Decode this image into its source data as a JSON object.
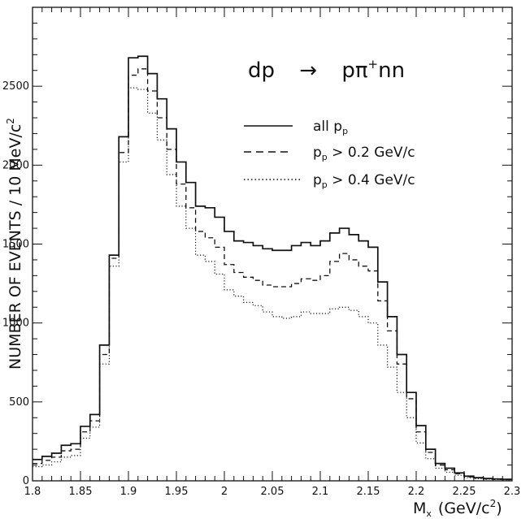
{
  "chart_data": {
    "type": "line",
    "step": true,
    "title": "dp → pπ⁺ nn",
    "title_parts": {
      "reaction": "dp",
      "arrow": "→",
      "product": "pπ",
      "superscript": "+",
      "tail": "nn"
    },
    "xlabel": "M_x (GeV/c²)",
    "xlabel_parts": {
      "M": "M",
      "sub": "x",
      "unit": "(GeV/c",
      "sup": "2",
      "close": ")"
    },
    "ylabel": "NUMBER OF EVENTS / 10 MeV/c²",
    "ylabel_parts": {
      "text": "NUMBER OF EVENTS / 10 MeV/c",
      "sup": "2"
    },
    "xlim": [
      1.8,
      2.3
    ],
    "ylim": [
      0,
      3000
    ],
    "x_ticks": [
      "1.8",
      "1.85",
      "1.9",
      "1.95",
      "2",
      "2.05",
      "2.1",
      "2.15",
      "2.2",
      "2.25",
      "2.3"
    ],
    "y_ticks": [
      "0",
      "500",
      "1000",
      "1500",
      "2000",
      "2500"
    ],
    "bin_edges_start": 1.8,
    "bin_width": 0.01,
    "legend_position": "top-right",
    "series": [
      {
        "name": "all p_p",
        "legend_parts": {
          "text": "all p",
          "sub": "p"
        },
        "style": "solid",
        "values": [
          135,
          155,
          175,
          225,
          235,
          345,
          420,
          860,
          1430,
          2180,
          2680,
          2690,
          2580,
          2420,
          2230,
          2020,
          1890,
          1740,
          1730,
          1670,
          1580,
          1520,
          1510,
          1490,
          1470,
          1460,
          1460,
          1490,
          1510,
          1490,
          1520,
          1570,
          1600,
          1560,
          1520,
          1480,
          1260,
          1040,
          800,
          560,
          350,
          200,
          110,
          80,
          50,
          30,
          20,
          15,
          12,
          10
        ]
      },
      {
        "name": "p_p > 0.2 GeV/c",
        "legend_parts": {
          "text": "p",
          "sub": "p",
          "rest": " > 0.2 GeV/c"
        },
        "style": "dashed",
        "values": [
          110,
          130,
          150,
          190,
          200,
          310,
          380,
          800,
          1410,
          2080,
          2570,
          2610,
          2470,
          2300,
          2100,
          1880,
          1730,
          1580,
          1540,
          1480,
          1370,
          1320,
          1290,
          1270,
          1240,
          1230,
          1230,
          1250,
          1280,
          1270,
          1300,
          1390,
          1440,
          1400,
          1360,
          1330,
          1140,
          950,
          740,
          520,
          310,
          180,
          100,
          70,
          45,
          25,
          18,
          12,
          10,
          8
        ]
      },
      {
        "name": "p_p > 0.4 GeV/c",
        "legend_parts": {
          "text": "p",
          "sub": "p",
          "rest": " > 0.4 GeV/c"
        },
        "style": "dotted",
        "values": [
          90,
          100,
          120,
          150,
          160,
          270,
          340,
          740,
          1360,
          2020,
          2490,
          2480,
          2330,
          2160,
          1940,
          1740,
          1600,
          1430,
          1390,
          1310,
          1210,
          1170,
          1130,
          1110,
          1070,
          1040,
          1030,
          1040,
          1070,
          1060,
          1060,
          1090,
          1100,
          1080,
          1040,
          1000,
          860,
          720,
          560,
          400,
          240,
          140,
          80,
          55,
          35,
          20,
          14,
          10,
          8,
          6
        ]
      }
    ]
  }
}
